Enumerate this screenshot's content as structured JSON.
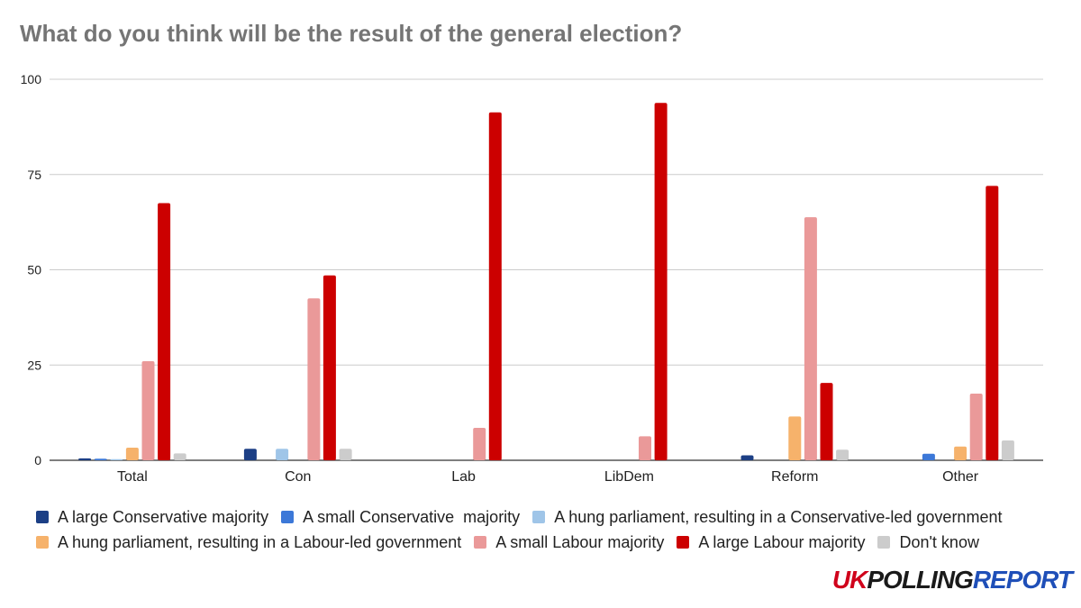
{
  "title": "What do you think will be the result of the general election?",
  "logo": {
    "part1": "UK",
    "part2": "POLLING",
    "part3": "REPORT"
  },
  "chart_data": {
    "type": "bar",
    "title": "What do you think will be the result of the general election?",
    "categories": [
      "Total",
      "Con",
      "Lab",
      "LibDem",
      "Reform",
      "Other"
    ],
    "ylim": [
      0,
      100
    ],
    "yticks": [
      0,
      25,
      50,
      75,
      100
    ],
    "grid": true,
    "legend_position": "bottom",
    "series": [
      {
        "name": "A large Conservative majority",
        "color": "#1c3f85",
        "values": [
          0.5,
          3,
          0,
          0,
          1.3,
          0
        ]
      },
      {
        "name": "A small Conservative  majority",
        "color": "#3c78d8",
        "values": [
          0.4,
          0,
          0,
          0,
          0,
          1.7
        ]
      },
      {
        "name": "A hung parliament, resulting in a Conservative-led government",
        "color": "#9fc5e8",
        "values": [
          0.3,
          3,
          0,
          0,
          0,
          0
        ]
      },
      {
        "name": "A hung parliament, resulting in a Labour-led government",
        "color": "#f6b26b",
        "values": [
          3.3,
          0,
          0,
          0,
          11.5,
          3.6
        ]
      },
      {
        "name": "A small Labour majority",
        "color": "#ea9999",
        "values": [
          26,
          42.5,
          8.5,
          6.3,
          63.8,
          17.5
        ]
      },
      {
        "name": "A large Labour majority",
        "color": "#cc0000",
        "values": [
          67.5,
          48.5,
          91.3,
          93.8,
          20.3,
          72
        ]
      },
      {
        "name": "Don't know",
        "color": "#cccccc",
        "values": [
          1.8,
          3,
          0,
          0,
          2.8,
          5.2
        ]
      }
    ]
  }
}
